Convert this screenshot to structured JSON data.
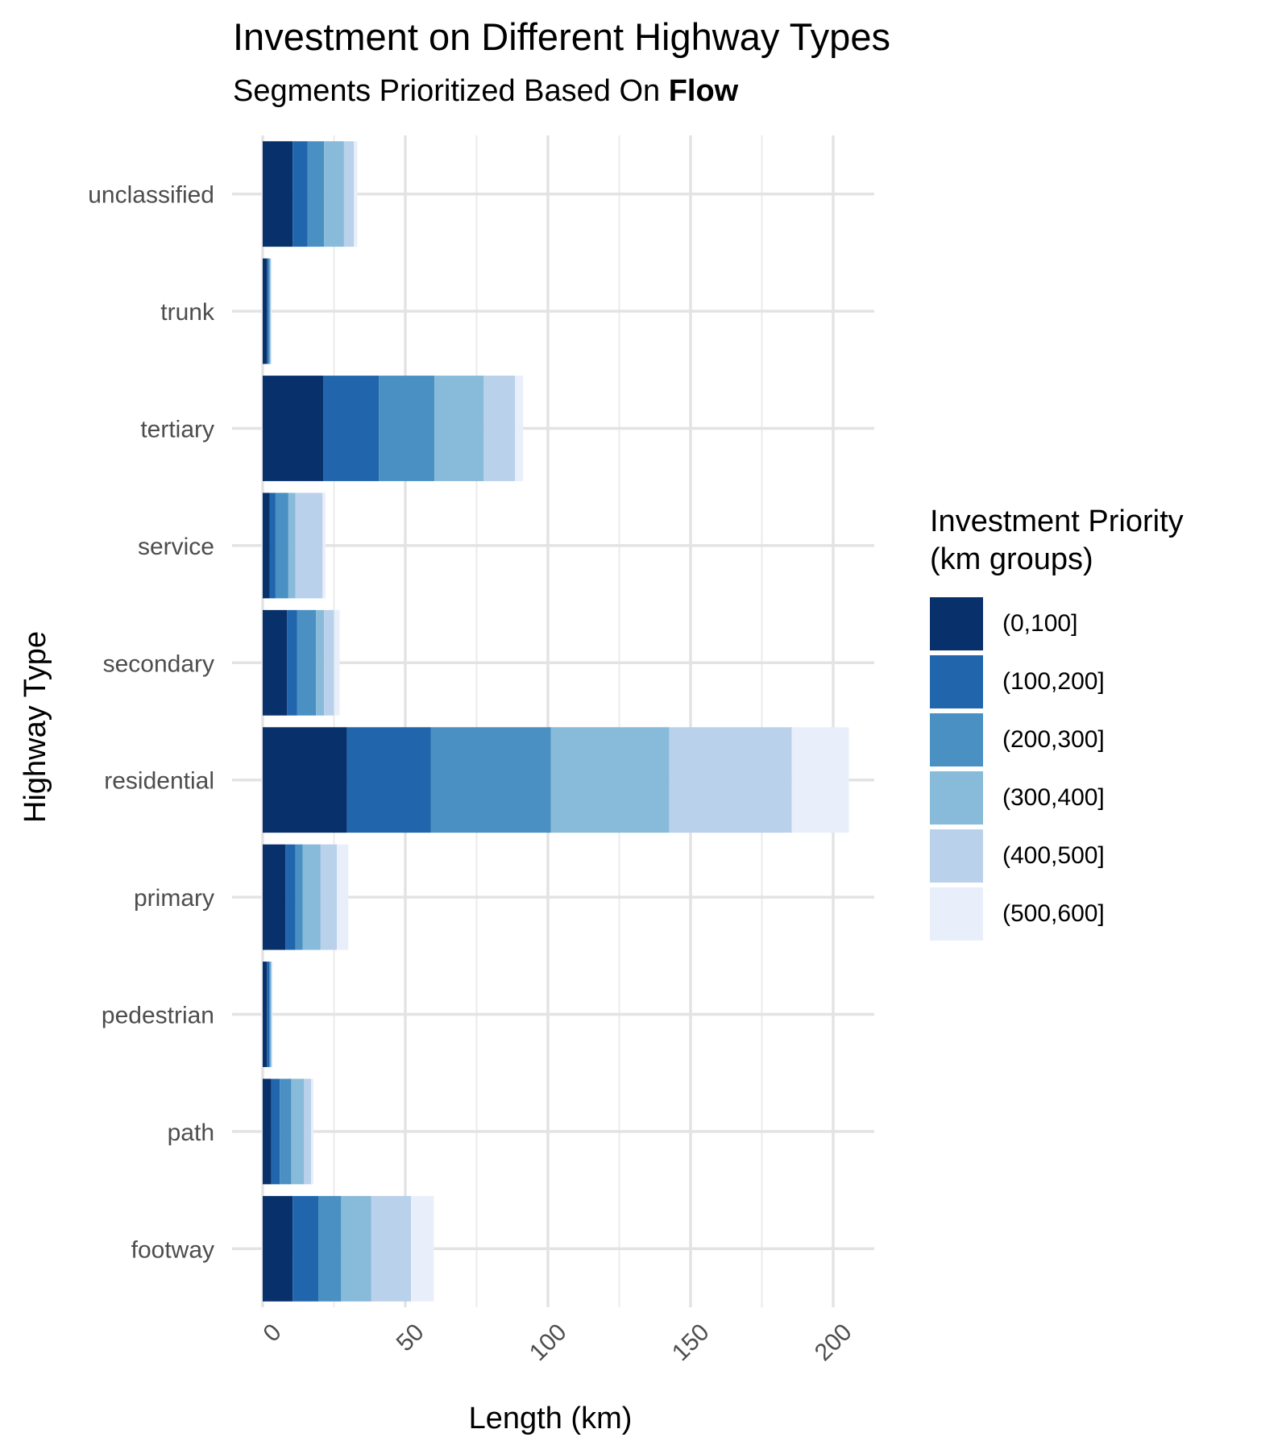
{
  "chart_data": {
    "type": "bar",
    "orientation": "horizontal",
    "stacked": true,
    "title": "Investment on Different Highway Types",
    "subtitle_prefix": "Segments Prioritized Based On ",
    "subtitle_bold": "Flow",
    "xlabel": "Length (km)",
    "ylabel": "Highway Type",
    "xlim": [
      -10,
      215
    ],
    "x_ticks": [
      "0",
      "50",
      "100",
      "150",
      "200"
    ],
    "x_tick_values": [
      0,
      50,
      100,
      150,
      200
    ],
    "grid": true,
    "legend_position": "right",
    "legend_title_line1": "Investment Priority",
    "legend_title_line2": "(km groups)",
    "categories": [
      "unclassified",
      "trunk",
      "tertiary",
      "service",
      "secondary",
      "residential",
      "primary",
      "pedestrian",
      "path",
      "footway"
    ],
    "series": [
      {
        "name": "(0,100]",
        "color": "#08306b",
        "values": [
          10.5,
          1.5,
          21.2,
          2.5,
          8.5,
          29.5,
          8.0,
          1.5,
          3.0,
          10.5
        ]
      },
      {
        "name": "(100,200]",
        "color": "#2166ac",
        "values": [
          5.2,
          0.5,
          19.5,
          2.0,
          3.5,
          29.5,
          3.5,
          0.8,
          3.0,
          9.0
        ]
      },
      {
        "name": "(200,300]",
        "color": "#4a90c2",
        "values": [
          5.8,
          0.4,
          19.5,
          4.5,
          6.7,
          42.0,
          2.5,
          0.4,
          4.0,
          8.0
        ]
      },
      {
        "name": "(300,400]",
        "color": "#88bad9",
        "values": [
          7.0,
          0.3,
          17.3,
          2.5,
          2.8,
          41.5,
          6.3,
          0.3,
          4.5,
          10.5
        ]
      },
      {
        "name": "(400,500]",
        "color": "#b9d1ea",
        "values": [
          3.5,
          0.2,
          11.0,
          9.5,
          3.5,
          43.0,
          5.7,
          0.2,
          2.5,
          14.0
        ]
      },
      {
        "name": "(500,600]",
        "color": "#e8effb",
        "values": [
          1.2,
          0.3,
          2.8,
          1.0,
          2.0,
          20.0,
          4.0,
          0.3,
          0.8,
          8.0
        ]
      }
    ]
  }
}
